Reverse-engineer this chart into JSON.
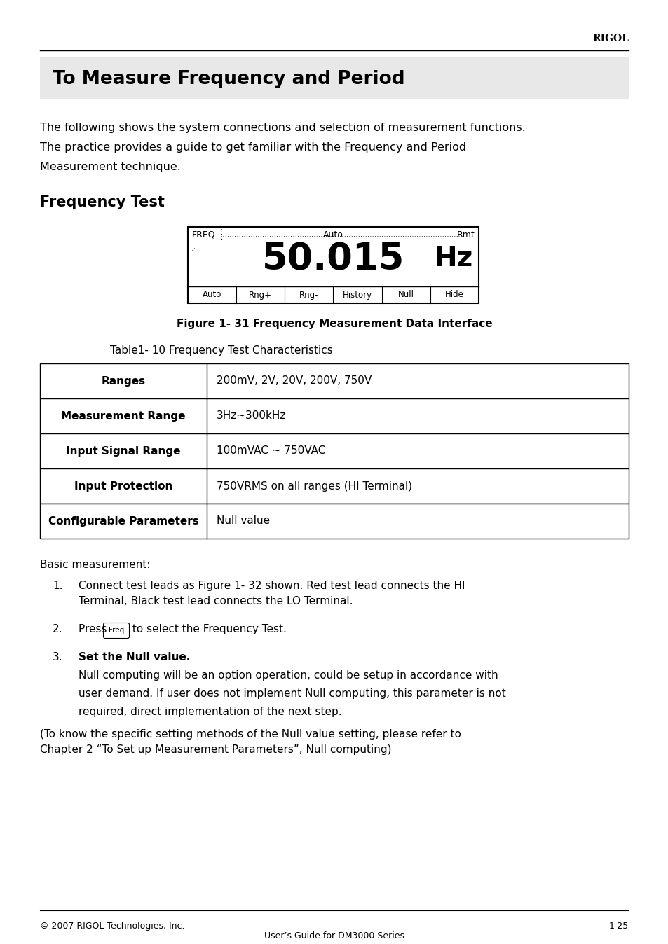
{
  "page_title": "To Measure Frequency and Period",
  "rigol_header": "RIGOL",
  "section_title": "Frequency Test",
  "body_line1": "The following shows the system connections and selection of measurement functions.",
  "body_line2": "The practice provides a guide to get familiar with the Frequency and Period",
  "body_line3": "Measurement technique.",
  "display_freq": "FREQ",
  "display_auto": "Auto",
  "display_rmt": "Rmt",
  "display_value": "50.015",
  "display_unit": "Hz",
  "display_buttons": [
    "Auto",
    "Rng+",
    "Rng-",
    "History",
    "Null",
    "Hide"
  ],
  "figure_caption": "Figure 1- 31 Frequency Measurement Data Interface",
  "table_caption": "Table1- 10 Frequency Test Characteristics",
  "table_rows": [
    [
      "Ranges",
      "200mV, 2V, 20V, 200V, 750V"
    ],
    [
      "Measurement Range",
      "3Hz~300kHz"
    ],
    [
      "Input Signal Range",
      "100mVAC ∼ 750VAC"
    ],
    [
      "Input Protection",
      "750VRMS on all ranges (HI Terminal)"
    ],
    [
      "Configurable Parameters",
      "Null value"
    ]
  ],
  "basic_measurement": "Basic measurement:",
  "step1_line1": "Connect test leads as Figure 1- 32 shown. Red test lead connects the HI",
  "step1_line2": "Terminal, Black test lead connects the LO Terminal.",
  "step2_pre": "Press ",
  "step2_button": "Freq",
  "step2_post": " to select the Frequency Test.",
  "step3_bold": "Set the Null value.",
  "step3_line1": "Null computing will be an option operation, could be setup in accordance with",
  "step3_line2": "user demand. If user does not implement Null computing, this parameter is not",
  "step3_line3": "required, direct implementation of the next step.",
  "note_line1": "(To know the specific setting methods of the Null value setting, please refer to",
  "note_line2": "Chapter 2 “To Set up Measurement Parameters”, Null computing)",
  "footer_left": "© 2007 RIGOL Technologies, Inc.",
  "footer_right": "1-25",
  "footer_center": "User’s Guide for DM3000 Series",
  "bg_color": "#ffffff"
}
